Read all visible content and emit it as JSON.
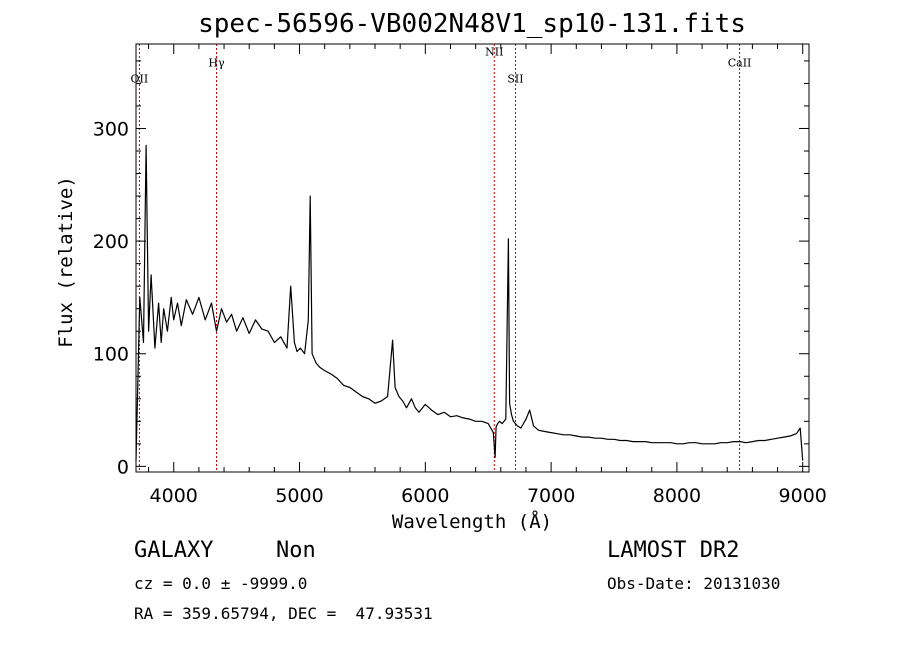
{
  "chart_data": {
    "type": "line",
    "title": "spec-56596-VB002N48V1_sp10-131.fits",
    "xlabel": "Wavelength (Å)",
    "ylabel": "Flux (relative)",
    "xlim": [
      3700,
      9050
    ],
    "ylim": [
      -5,
      375
    ],
    "x_ticks": [
      4000,
      5000,
      6000,
      7000,
      8000,
      9000
    ],
    "y_ticks": [
      0,
      100,
      200,
      300
    ],
    "grid": false,
    "line_color": "#000000",
    "marker_color": "#cc0000",
    "series": [
      {
        "x": [
          3700,
          3730,
          3760,
          3780,
          3800,
          3820,
          3850,
          3880,
          3900,
          3920,
          3950,
          3980,
          4000,
          4030,
          4060,
          4100,
          4150,
          4200,
          4250,
          4300,
          4340,
          4380,
          4420,
          4460,
          4500,
          4550,
          4600,
          4650,
          4700,
          4750,
          4800,
          4850,
          4900,
          4930,
          4959,
          4980,
          5007,
          5040,
          5070,
          5085,
          5100,
          5130,
          5160,
          5200,
          5250,
          5300,
          5350,
          5400,
          5450,
          5500,
          5550,
          5600,
          5650,
          5700,
          5740,
          5760,
          5790,
          5820,
          5850,
          5890,
          5920,
          5950,
          6000,
          6050,
          6100,
          6150,
          6200,
          6250,
          6300,
          6350,
          6400,
          6450,
          6500,
          6540,
          6555,
          6563,
          6575,
          6590,
          6610,
          6640,
          6660,
          6670,
          6685,
          6700,
          6730,
          6760,
          6800,
          6830,
          6860,
          6900,
          6950,
          7000,
          7050,
          7100,
          7150,
          7200,
          7250,
          7300,
          7350,
          7400,
          7450,
          7500,
          7550,
          7600,
          7650,
          7700,
          7750,
          7800,
          7850,
          7900,
          7950,
          8000,
          8050,
          8100,
          8150,
          8200,
          8250,
          8300,
          8350,
          8400,
          8450,
          8500,
          8550,
          8600,
          8650,
          8700,
          8750,
          8800,
          8850,
          8900,
          8950,
          8980,
          9000
        ],
        "y": [
          5,
          150,
          110,
          285,
          120,
          170,
          105,
          145,
          110,
          140,
          120,
          150,
          130,
          145,
          125,
          148,
          135,
          150,
          130,
          145,
          120,
          140,
          128,
          135,
          120,
          132,
          118,
          130,
          122,
          120,
          110,
          115,
          105,
          160,
          110,
          102,
          105,
          100,
          130,
          240,
          100,
          92,
          88,
          85,
          82,
          78,
          72,
          70,
          66,
          62,
          60,
          56,
          58,
          62,
          112,
          70,
          62,
          58,
          52,
          60,
          52,
          48,
          55,
          50,
          46,
          48,
          44,
          45,
          43,
          42,
          40,
          40,
          38,
          30,
          8,
          35,
          38,
          40,
          38,
          42,
          202,
          56,
          46,
          40,
          36,
          34,
          42,
          50,
          36,
          32,
          31,
          30,
          29,
          28,
          28,
          27,
          26,
          26,
          25,
          25,
          24,
          24,
          23,
          23,
          22,
          22,
          22,
          21,
          21,
          21,
          21,
          20,
          20,
          21,
          21,
          20,
          20,
          20,
          21,
          21,
          22,
          22,
          21,
          22,
          23,
          23,
          24,
          25,
          26,
          27,
          29,
          34,
          5
        ]
      }
    ],
    "line_markers": [
      {
        "label": "OII",
        "x": 3727,
        "label_y": 341
      },
      {
        "label": "Hγ",
        "x": 4340,
        "label_y": 355
      },
      {
        "label": "NII",
        "x": 6548,
        "label_y": 365
      },
      {
        "label": "SII",
        "x": 6717,
        "label_y": 341
      },
      {
        "label": "CaII",
        "x": 8498,
        "label_y": 355
      }
    ]
  },
  "info": {
    "object_class": "GALAXY",
    "subclass": "Non",
    "survey": "LAMOST DR2",
    "redshift": "cz = 0.0 ± -9999.0",
    "obs_date": "Obs-Date: 20131030",
    "coords": "RA = 359.65794, DEC =  47.93531"
  }
}
